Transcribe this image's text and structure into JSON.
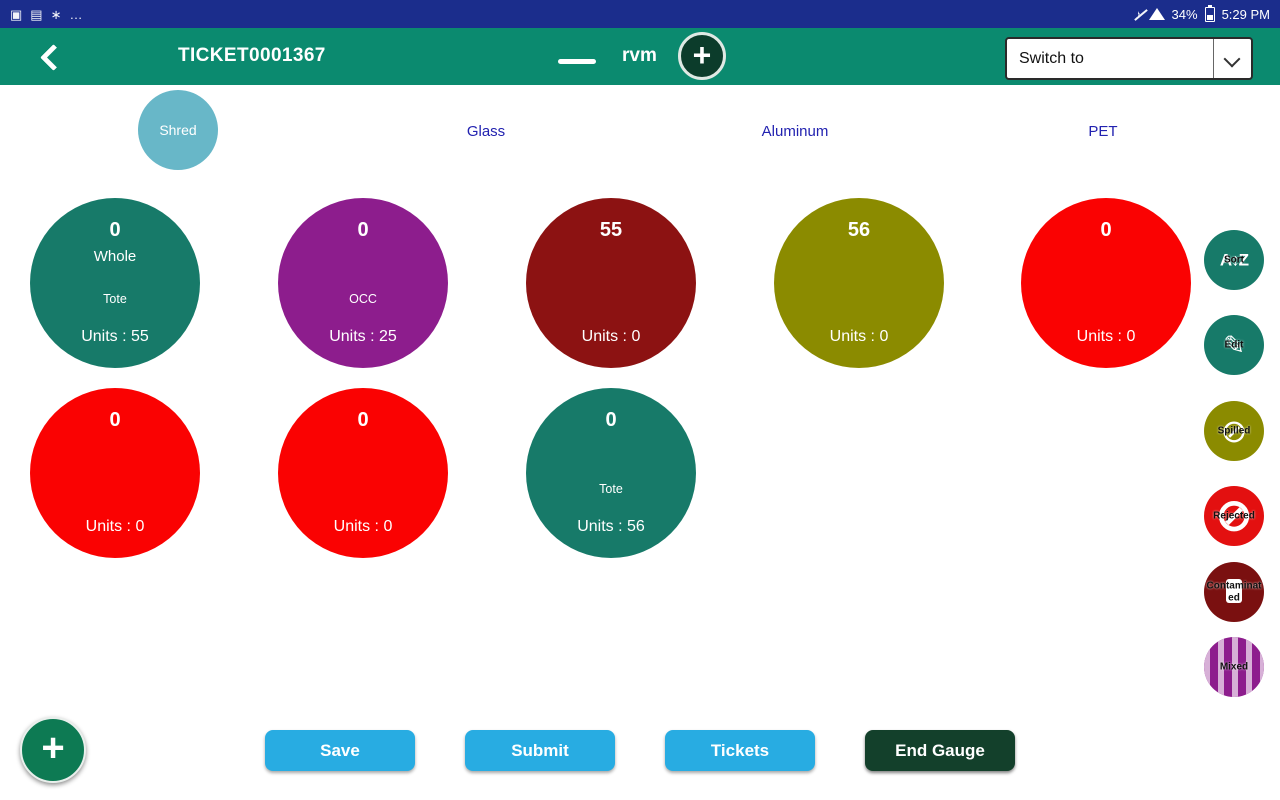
{
  "status_bar": {
    "time": "5:29 PM",
    "battery_percent": "34%",
    "left_icons": [
      {
        "glyph": "▣"
      },
      {
        "glyph": "▤"
      },
      {
        "glyph": "∗"
      },
      {
        "glyph": "…"
      }
    ],
    "mute_glyph": "♪"
  },
  "app_bar": {
    "title": "TICKET0001367",
    "center_label": "rvm",
    "plus_label": "+",
    "switch_to_label": "Switch to"
  },
  "categories": {
    "shred": "Shred",
    "glass": "Glass",
    "aluminum": "Aluminum",
    "pet": "PET"
  },
  "circles": [
    {
      "value": "0",
      "line2": "Whole",
      "line3": "Tote",
      "units": "Units : 55",
      "color": "#177a69"
    },
    {
      "value": "0",
      "line3": "OCC",
      "units": "Units : 25",
      "color": "#8d1d8d"
    },
    {
      "value": "55",
      "units": "Units : 0",
      "color": "#8c1212"
    },
    {
      "value": "56",
      "units": "Units : 0",
      "color": "#8b8b00"
    },
    {
      "value": "0",
      "units": "Units : 0",
      "color": "#fa0202"
    },
    {
      "value": "0",
      "units": "Units : 0",
      "color": "#fa0202"
    },
    {
      "value": "0",
      "units": "Units : 0",
      "color": "#fa0202"
    },
    {
      "value": "0",
      "line3": "Tote",
      "units": "Units : 56",
      "color": "#177a69"
    }
  ],
  "side_actions": [
    {
      "label": "Sort",
      "glyph": "A↕Z",
      "color": "#177a69"
    },
    {
      "label": "Edit",
      "glyph": "✎",
      "color": "#177a69"
    },
    {
      "label": "Spilled",
      "glyph": "⊘",
      "color": "#8b8b00"
    },
    {
      "label": "Rejected",
      "glyph": "⊘",
      "color": "#e31010"
    },
    {
      "label": "Contaminated",
      "glyph": "",
      "color": "#7a1010"
    },
    {
      "label": "Mixed",
      "glyph": "",
      "color": "#8d1d8d"
    }
  ],
  "footer": {
    "fab_label": "+",
    "buttons": [
      {
        "label": "Save",
        "color": "#28ace2"
      },
      {
        "label": "Submit",
        "color": "#28ace2"
      },
      {
        "label": "Tickets",
        "color": "#28ace2"
      },
      {
        "label": "End Gauge",
        "color": "#13402b"
      }
    ]
  },
  "colors": {
    "status_bar": "#1b2d8c",
    "app_bar": "#0b8a6f",
    "fab": "#0d7a53",
    "category_text": "#2222b0",
    "shred_circle": "#68b7c8",
    "plus_badge": "#0c3c2b"
  }
}
